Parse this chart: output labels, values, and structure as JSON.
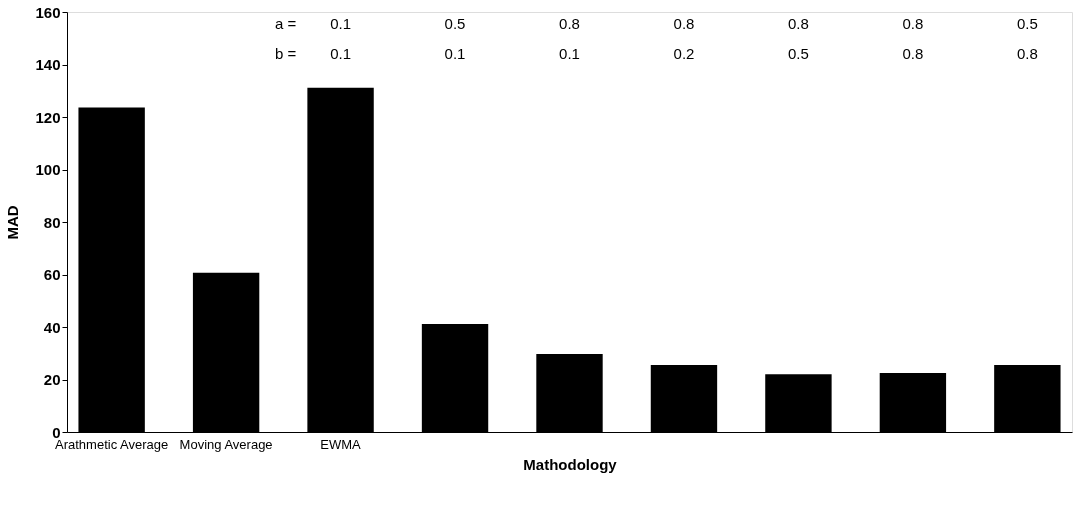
{
  "chart_data": {
    "type": "bar",
    "xlabel": "Mathodology",
    "ylabel": "MAD",
    "categories": [
      "Arathmetic Average",
      "Moving Average",
      "EWMA",
      null,
      null,
      null,
      null,
      null,
      null
    ],
    "values": [
      123.6,
      60.7,
      131.1,
      41.1,
      29.7,
      25.5,
      22.0,
      22.5,
      25.5
    ],
    "color": "#000000",
    "ylim": [
      0,
      160
    ],
    "yticks": [
      0,
      20,
      40,
      60,
      80,
      100,
      120,
      140,
      160
    ],
    "grid": false,
    "annotations": [
      "a =",
      "0.1",
      "0.5",
      "0.8",
      "0.8",
      "0.8",
      "0.8",
      "0.5",
      "b =",
      "0.1",
      "0.1",
      "0.1",
      "0.2",
      "0.5",
      "0.8",
      "0.8"
    ]
  }
}
